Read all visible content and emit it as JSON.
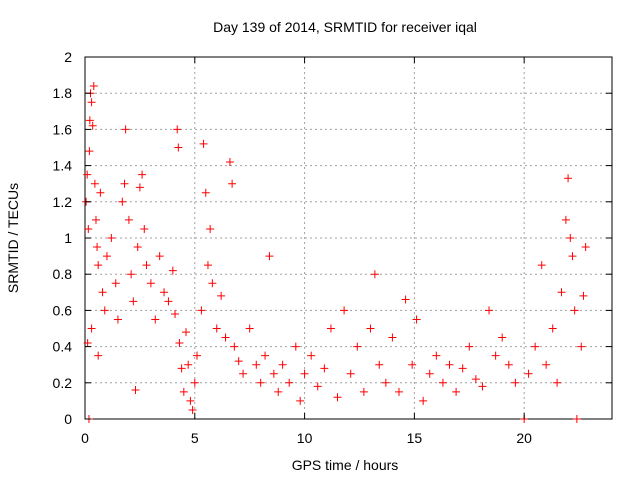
{
  "chart_data": {
    "type": "scatter",
    "title": "Day 139 of 2014, SRMTID for receiver iqal",
    "xlabel": "GPS time / hours",
    "ylabel": "SRMTID / TECUs",
    "xlim": [
      0,
      24.0
    ],
    "ylim": [
      0,
      2
    ],
    "xticks": [
      0,
      5,
      10,
      15,
      20
    ],
    "xtick_labels": [
      "0",
      "5",
      "10",
      "15",
      "20"
    ],
    "yticks": [
      0,
      0.2,
      0.4,
      0.6,
      0.8,
      1,
      1.2,
      1.4,
      1.6,
      1.8,
      2
    ],
    "ytick_labels": [
      "0",
      "0.2",
      "0.4",
      "0.6",
      "0.8",
      "1",
      "1.2",
      "1.4",
      "1.6",
      "1.8",
      "2"
    ],
    "grid": true,
    "marker": "+",
    "series": [
      {
        "name": "SRMTID",
        "color": "#ff0000",
        "points": [
          [
            0.05,
            1.2
          ],
          [
            0.1,
            1.35
          ],
          [
            0.15,
            1.05
          ],
          [
            0.2,
            1.48
          ],
          [
            0.22,
            1.65
          ],
          [
            0.25,
            1.8
          ],
          [
            0.3,
            1.75
          ],
          [
            0.35,
            1.62
          ],
          [
            0.4,
            1.84
          ],
          [
            0.45,
            1.3
          ],
          [
            0.5,
            1.1
          ],
          [
            0.55,
            0.95
          ],
          [
            0.6,
            0.85
          ],
          [
            0.7,
            1.25
          ],
          [
            0.8,
            0.7
          ],
          [
            0.9,
            0.6
          ],
          [
            0.12,
            0.42
          ],
          [
            0.18,
            0.0
          ],
          [
            0.3,
            0.5
          ],
          [
            0.6,
            0.35
          ],
          [
            1.0,
            0.9
          ],
          [
            1.2,
            1.0
          ],
          [
            1.4,
            0.75
          ],
          [
            1.5,
            0.55
          ],
          [
            1.7,
            1.2
          ],
          [
            1.8,
            1.3
          ],
          [
            1.85,
            1.6
          ],
          [
            2.0,
            1.1
          ],
          [
            2.1,
            0.8
          ],
          [
            2.2,
            0.65
          ],
          [
            2.3,
            0.16
          ],
          [
            2.4,
            0.95
          ],
          [
            2.5,
            1.28
          ],
          [
            2.6,
            1.35
          ],
          [
            2.7,
            1.05
          ],
          [
            2.8,
            0.85
          ],
          [
            3.0,
            0.75
          ],
          [
            3.2,
            0.55
          ],
          [
            3.4,
            0.9
          ],
          [
            3.6,
            0.7
          ],
          [
            3.8,
            0.65
          ],
          [
            4.0,
            0.82
          ],
          [
            4.1,
            0.58
          ],
          [
            4.2,
            1.6
          ],
          [
            4.25,
            1.5
          ],
          [
            4.3,
            0.42
          ],
          [
            4.4,
            0.28
          ],
          [
            4.5,
            0.15
          ],
          [
            4.6,
            0.48
          ],
          [
            4.7,
            0.3
          ],
          [
            4.8,
            0.1
          ],
          [
            4.9,
            0.05
          ],
          [
            5.0,
            0.2
          ],
          [
            5.1,
            0.35
          ],
          [
            5.3,
            0.6
          ],
          [
            5.4,
            1.52
          ],
          [
            5.5,
            1.25
          ],
          [
            5.6,
            0.85
          ],
          [
            5.7,
            1.05
          ],
          [
            5.8,
            0.75
          ],
          [
            6.0,
            0.5
          ],
          [
            6.2,
            0.68
          ],
          [
            6.4,
            0.45
          ],
          [
            6.6,
            1.42
          ],
          [
            6.7,
            1.3
          ],
          [
            6.8,
            0.4
          ],
          [
            7.0,
            0.32
          ],
          [
            7.2,
            0.25
          ],
          [
            7.5,
            0.5
          ],
          [
            7.8,
            0.3
          ],
          [
            8.0,
            0.2
          ],
          [
            8.2,
            0.35
          ],
          [
            8.4,
            0.9
          ],
          [
            8.6,
            0.25
          ],
          [
            8.8,
            0.15
          ],
          [
            9.0,
            0.3
          ],
          [
            9.3,
            0.2
          ],
          [
            9.6,
            0.4
          ],
          [
            9.8,
            0.1
          ],
          [
            10.0,
            0.25
          ],
          [
            10.3,
            0.35
          ],
          [
            10.6,
            0.18
          ],
          [
            10.9,
            0.28
          ],
          [
            11.2,
            0.5
          ],
          [
            11.5,
            0.12
          ],
          [
            11.8,
            0.6
          ],
          [
            12.1,
            0.25
          ],
          [
            12.4,
            0.4
          ],
          [
            12.7,
            0.15
          ],
          [
            13.0,
            0.5
          ],
          [
            13.2,
            0.8
          ],
          [
            13.4,
            0.3
          ],
          [
            13.7,
            0.2
          ],
          [
            14.0,
            0.45
          ],
          [
            14.3,
            0.15
          ],
          [
            14.6,
            0.66
          ],
          [
            14.9,
            0.3
          ],
          [
            15.1,
            0.55
          ],
          [
            15.4,
            0.1
          ],
          [
            15.7,
            0.25
          ],
          [
            16.0,
            0.35
          ],
          [
            16.3,
            0.2
          ],
          [
            16.6,
            0.3
          ],
          [
            16.9,
            0.15
          ],
          [
            17.2,
            0.28
          ],
          [
            17.5,
            0.4
          ],
          [
            17.8,
            0.22
          ],
          [
            18.1,
            0.18
          ],
          [
            18.4,
            0.6
          ],
          [
            18.7,
            0.35
          ],
          [
            19.0,
            0.45
          ],
          [
            19.3,
            0.3
          ],
          [
            19.6,
            0.2
          ],
          [
            20.0,
            0.0
          ],
          [
            20.2,
            0.25
          ],
          [
            20.5,
            0.4
          ],
          [
            20.8,
            0.85
          ],
          [
            21.0,
            0.3
          ],
          [
            21.3,
            0.5
          ],
          [
            21.5,
            0.2
          ],
          [
            21.7,
            0.7
          ],
          [
            21.9,
            1.1
          ],
          [
            22.0,
            1.33
          ],
          [
            22.1,
            1.0
          ],
          [
            22.2,
            0.9
          ],
          [
            22.3,
            0.6
          ],
          [
            22.4,
            0.0
          ],
          [
            22.6,
            0.4
          ],
          [
            22.7,
            0.68
          ],
          [
            22.8,
            0.95
          ]
        ]
      }
    ]
  }
}
